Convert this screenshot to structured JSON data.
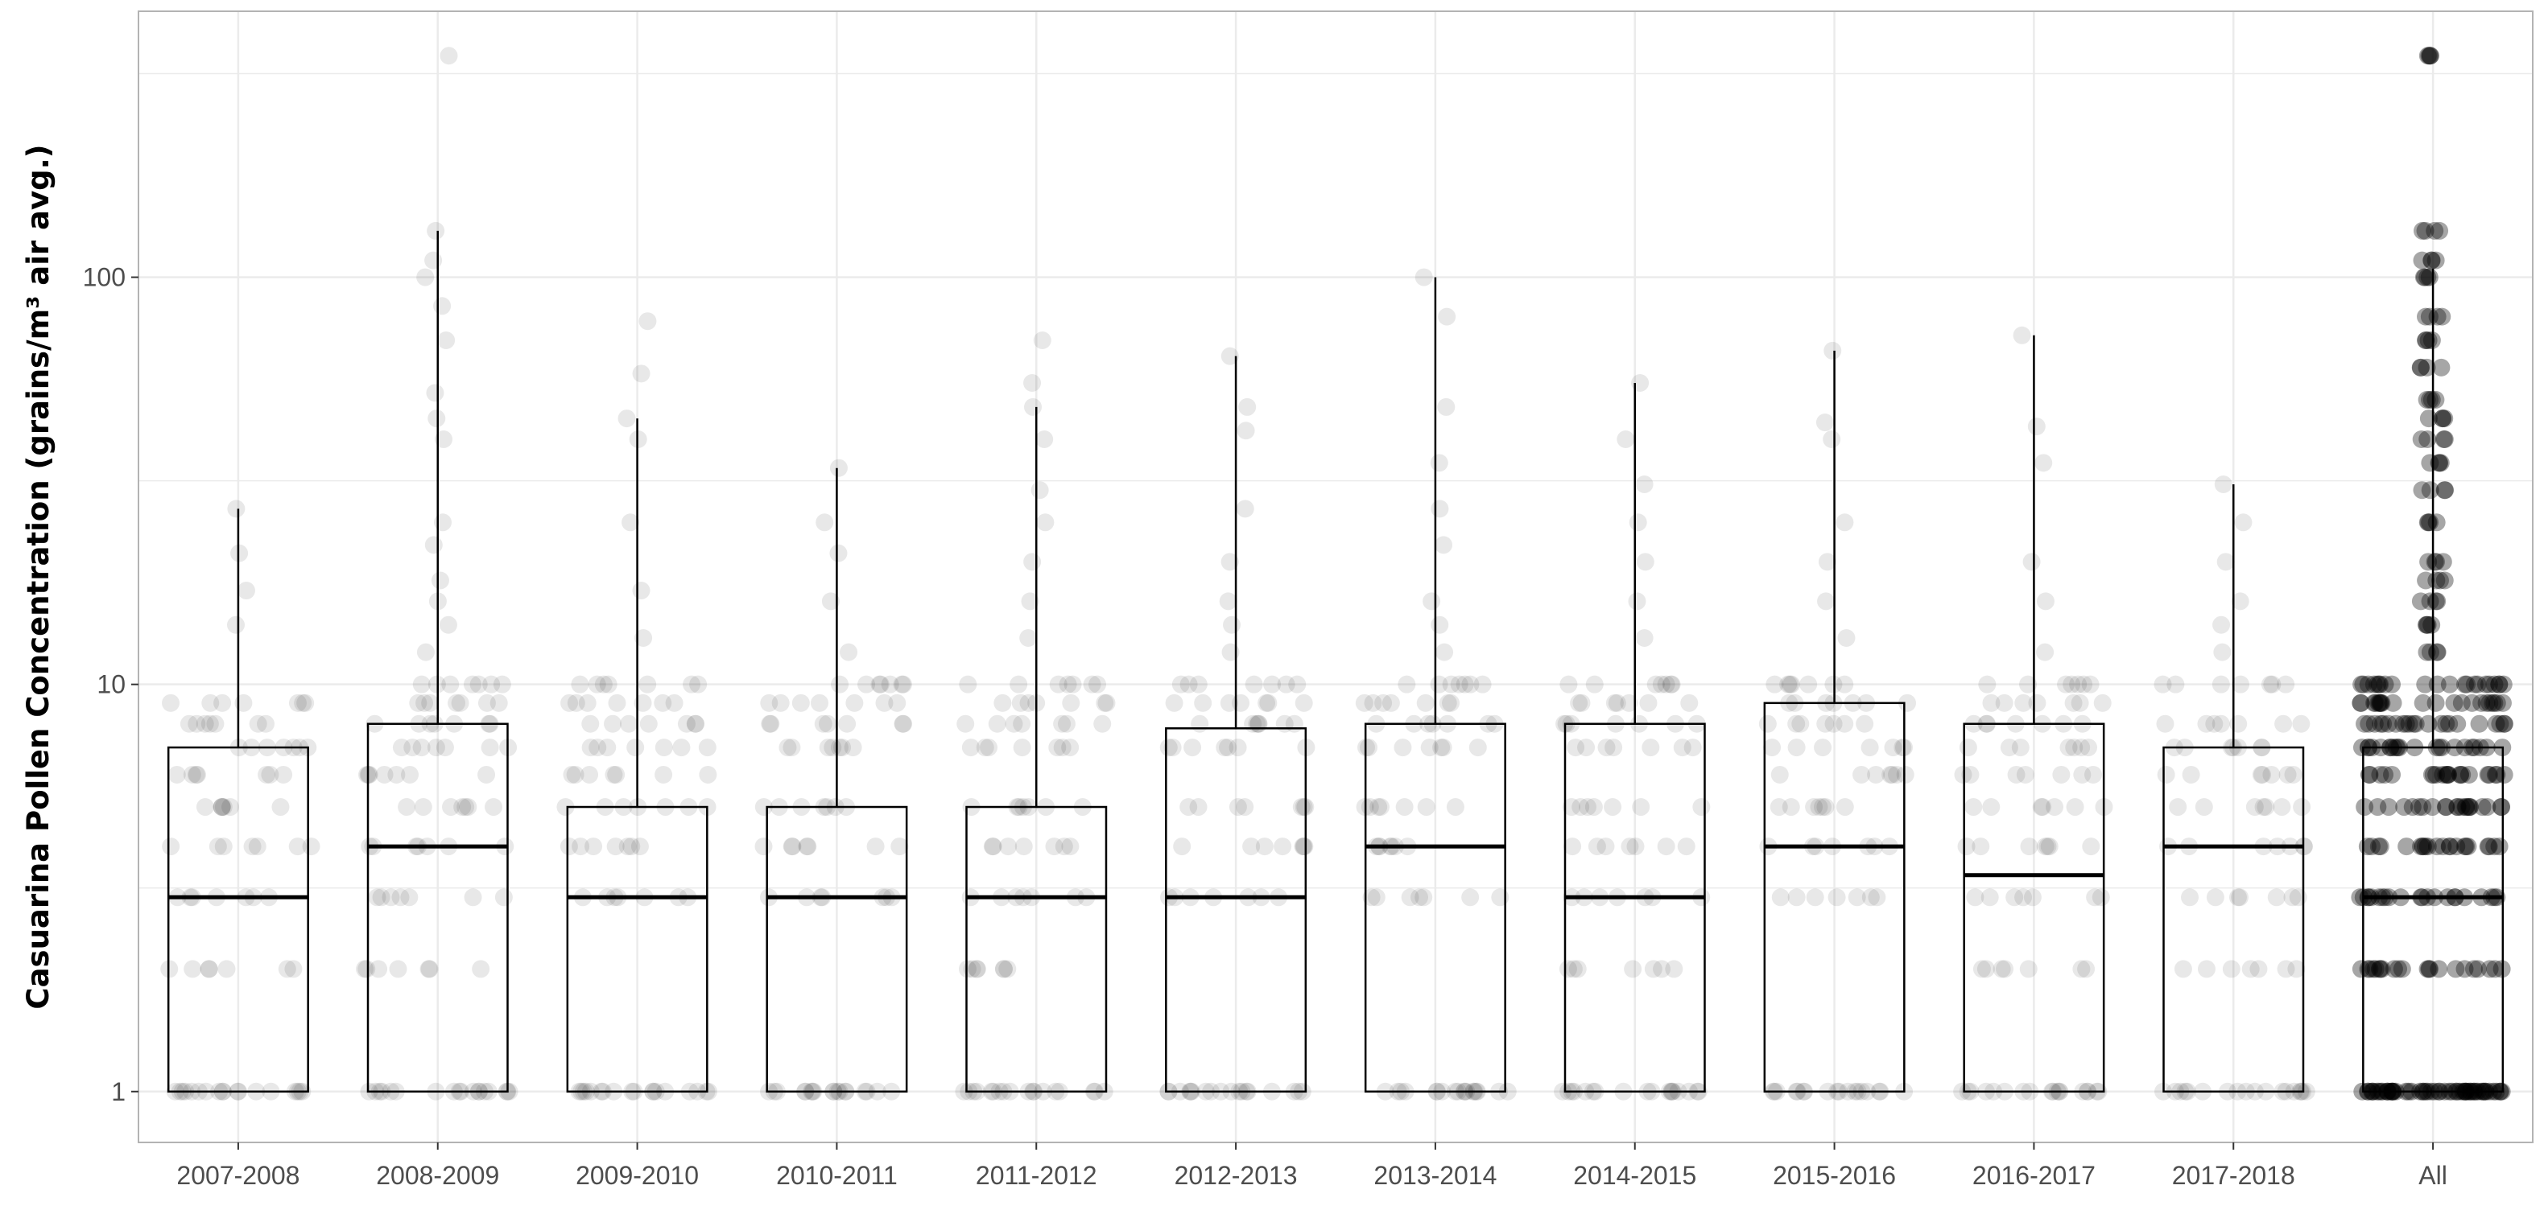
{
  "chart_data": {
    "type": "boxplot",
    "title": "",
    "xlabel": "",
    "ylabel": "Casuarina Pollen Concentration (grains/m³ air avg.)",
    "y_scale": "log10",
    "ylim": [
      0.75,
      450
    ],
    "y_ticks": [
      1,
      10,
      100
    ],
    "grid": true,
    "categories": [
      "2007-2008",
      "2008-2009",
      "2009-2010",
      "2010-2011",
      "2011-2012",
      "2012-2013",
      "2013-2014",
      "2014-2015",
      "2015-2016",
      "2016-2017",
      "2017-2018",
      "All"
    ],
    "boxes": [
      {
        "category": "2007-2008",
        "q1": 1,
        "median": 3,
        "q3": 7,
        "whisker_low": 1,
        "whisker_high": 27
      },
      {
        "category": "2008-2009",
        "q1": 1,
        "median": 4,
        "q3": 8,
        "whisker_low": 1,
        "whisker_high": 130
      },
      {
        "category": "2009-2010",
        "q1": 1,
        "median": 3,
        "q3": 5,
        "whisker_low": 1,
        "whisker_high": 45
      },
      {
        "category": "2010-2011",
        "q1": 1,
        "median": 3,
        "q3": 5,
        "whisker_low": 1,
        "whisker_high": 34
      },
      {
        "category": "2011-2012",
        "q1": 1,
        "median": 3,
        "q3": 5,
        "whisker_low": 1,
        "whisker_high": 48
      },
      {
        "category": "2012-2013",
        "q1": 1,
        "median": 3,
        "q3": 7.8,
        "whisker_low": 1,
        "whisker_high": 64
      },
      {
        "category": "2013-2014",
        "q1": 1,
        "median": 4,
        "q3": 8,
        "whisker_low": 1,
        "whisker_high": 100
      },
      {
        "category": "2014-2015",
        "q1": 1,
        "median": 3,
        "q3": 8,
        "whisker_low": 1,
        "whisker_high": 55
      },
      {
        "category": "2015-2016",
        "q1": 1,
        "median": 4,
        "q3": 9,
        "whisker_low": 1,
        "whisker_high": 66
      },
      {
        "category": "2016-2017",
        "q1": 1,
        "median": 3.4,
        "q3": 8,
        "whisker_low": 1,
        "whisker_high": 72
      },
      {
        "category": "2017-2018",
        "q1": 1,
        "median": 4,
        "q3": 7,
        "whisker_low": 1,
        "whisker_high": 31
      },
      {
        "category": "All",
        "q1": 1,
        "median": 3,
        "q3": 7,
        "whisker_low": 1,
        "whisker_high": 105
      }
    ],
    "points": [
      [
        1,
        2,
        3,
        4,
        5,
        6,
        7,
        8,
        9,
        14,
        17,
        21,
        27
      ],
      [
        1,
        2,
        3,
        4,
        5,
        6,
        7,
        8,
        9,
        10,
        12,
        14,
        16,
        18,
        22,
        25,
        40,
        45,
        52,
        70,
        85,
        100,
        110,
        130,
        350
      ],
      [
        1,
        3,
        4,
        5,
        6,
        7,
        8,
        9,
        10,
        13,
        17,
        25,
        40,
        45,
        58,
        78
      ],
      [
        1,
        3,
        4,
        5,
        7,
        8,
        9,
        10,
        12,
        16,
        21,
        25,
        34
      ],
      [
        1,
        2,
        3,
        4,
        5,
        7,
        8,
        9,
        10,
        13,
        16,
        20,
        25,
        30,
        40,
        48,
        55,
        70
      ],
      [
        1,
        3,
        4,
        5,
        7,
        8,
        9,
        10,
        12,
        14,
        16,
        20,
        27,
        42,
        48,
        64
      ],
      [
        1,
        3,
        4,
        5,
        7,
        8,
        9,
        10,
        12,
        14,
        16,
        22,
        27,
        35,
        48,
        80,
        100
      ],
      [
        1,
        2,
        3,
        4,
        5,
        7,
        8,
        9,
        10,
        13,
        16,
        20,
        25,
        31,
        40,
        55
      ],
      [
        1,
        3,
        4,
        5,
        6,
        7,
        8,
        9,
        10,
        13,
        16,
        20,
        25,
        40,
        44,
        66
      ],
      [
        1,
        2,
        3,
        4,
        5,
        6,
        7,
        8,
        9,
        10,
        12,
        16,
        20,
        35,
        43,
        72
      ],
      [
        1,
        2,
        3,
        4,
        5,
        6,
        7,
        8,
        10,
        12,
        14,
        16,
        20,
        25,
        31
      ],
      [
        1,
        2,
        3,
        4,
        5,
        6,
        7,
        8,
        9,
        10,
        12,
        14,
        16,
        18,
        20,
        25,
        30,
        35,
        40,
        45,
        50,
        60,
        70,
        80,
        100,
        110,
        130,
        350
      ]
    ],
    "colors": {
      "box": "#000000",
      "point": "#000000",
      "grid": "#ebebeb",
      "frame": "#b3b3b3"
    }
  }
}
